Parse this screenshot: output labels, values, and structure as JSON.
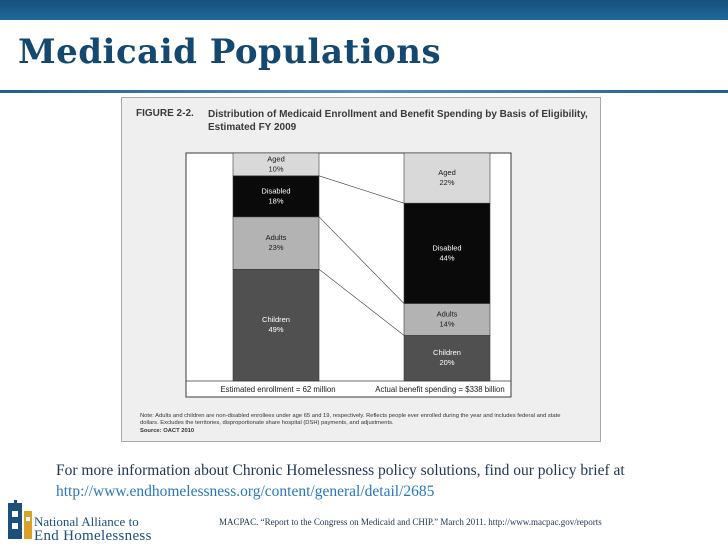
{
  "slide": {
    "title": "Medicaid Populations",
    "more_info_text": "For more information about Chronic Homelessness policy solutions, find our policy brief at ",
    "more_info_link": "http://www.endhomelessness.org/content/general/detail/2685",
    "source": "MACPAC. “Report to the Congress on Medicaid and CHIP.” March 2011. http://www.macpac.gov/reports"
  },
  "logo": {
    "line1": "National Alliance to",
    "line2": "End Homelessness"
  },
  "figure": {
    "tag": "FIGURE 2-2.",
    "caption_line1": "Distribution of Medicaid Enrollment and Benefit Spending by Basis of Eligibility,",
    "caption_line2": "Estimated FY 2009",
    "note_line1": "Note: Adults and children are non-disabled enrollees under age 65 and 19, respectively. Reflects people ever enrolled during the year and includes federal and state",
    "note_line2": "dollars. Excludes the territories, disproportionate share hospital (DSH) payments, and adjustments.",
    "note_line3": "Source: OACT 2010"
  },
  "colors": {
    "title": "#15486e",
    "band": "#1f6a9c",
    "link": "#2a77b8",
    "aged": "#d9d9d9",
    "disabled": "#0a0a0a",
    "adults": "#b3b3b3",
    "children": "#505050"
  },
  "chart_data": {
    "type": "bar",
    "stacked": true,
    "normalized_percent": true,
    "categories": [
      "Estimated enrollment = 62 million",
      "Actual benefit spending = $338 billion"
    ],
    "series": [
      {
        "name": "Children",
        "values": [
          49,
          20
        ],
        "value_labels": [
          "49%",
          "20%"
        ],
        "color": "#505050",
        "text_color": "#ffffff"
      },
      {
        "name": "Adults",
        "values": [
          23,
          14
        ],
        "value_labels": [
          "23%",
          "14%"
        ],
        "color": "#b3b3b3",
        "text_color": "#1a1a1a"
      },
      {
        "name": "Disabled",
        "values": [
          18,
          44
        ],
        "value_labels": [
          "18%",
          "44%"
        ],
        "color": "#0a0a0a",
        "text_color": "#ffffff"
      },
      {
        "name": "Aged",
        "values": [
          10,
          22
        ],
        "value_labels": [
          "10%",
          "22%"
        ],
        "color": "#d9d9d9",
        "text_color": "#1a1a1a"
      }
    ],
    "ylim": [
      0,
      100
    ],
    "grid": false,
    "legend": "none"
  }
}
